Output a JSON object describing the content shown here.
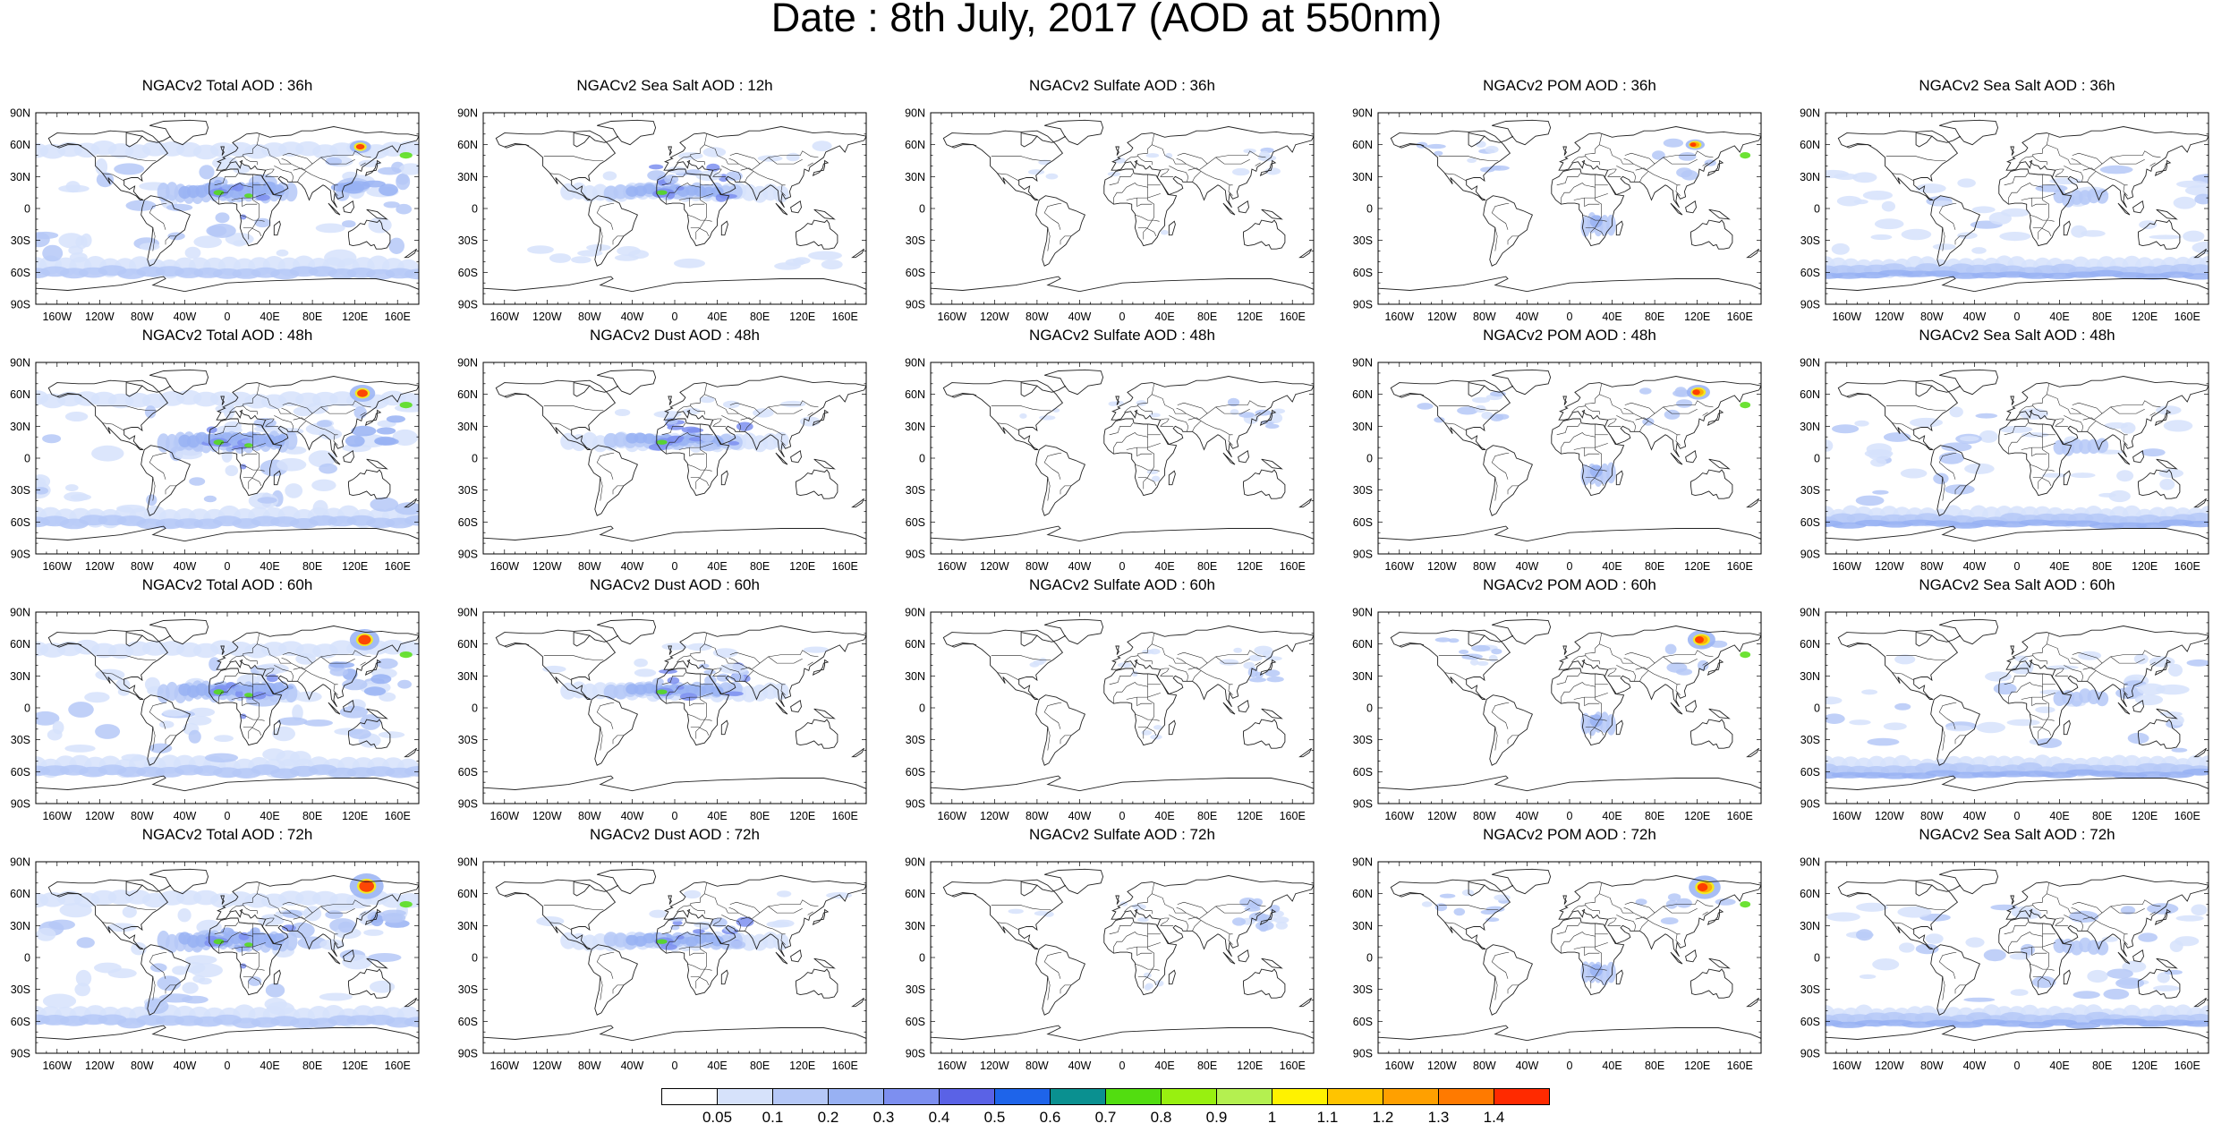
{
  "title": "Date : 8th July, 2017 (AOD at 550nm)",
  "lat_labels": [
    "90N",
    "60N",
    "30N",
    "0",
    "30S",
    "60S",
    "90S"
  ],
  "lon_labels": [
    "160W",
    "120W",
    "80W",
    "40W",
    "0",
    "40E",
    "80E",
    "120E",
    "160E"
  ],
  "panels": [
    [
      "NGACv2 Total AOD : 36h",
      "NGACv2 Sea Salt  AOD : 12h",
      "NGACv2 Sulfate AOD : 36h",
      "NGACv2 POM AOD : 36h",
      "NGACv2 Sea Salt AOD : 36h"
    ],
    [
      "NGACv2 Total AOD : 48h",
      "NGACv2 Dust AOD : 48h",
      "NGACv2 Sulfate AOD : 48h",
      "NGACv2 POM AOD : 48h",
      "NGACv2 Sea Salt AOD : 48h"
    ],
    [
      "NGACv2 Total AOD : 60h",
      "NGACv2 Dust AOD : 60h",
      "NGACv2 Sulfate AOD : 60h",
      "NGACv2 POM AOD : 60h",
      "NGACv2 Sea Salt AOD : 60h"
    ],
    [
      "NGACv2 Total AOD : 72h",
      "NGACv2 Dust AOD : 72h",
      "NGACv2 Sulfate AOD : 72h",
      "NGACv2 POM AOD : 72h",
      "NGACv2 Sea Salt  AOD : 72h"
    ]
  ],
  "colorbar": {
    "labels": [
      "0.05",
      "0.1",
      "0.2",
      "0.3",
      "0.4",
      "0.5",
      "0.6",
      "0.7",
      "0.8",
      "0.9",
      "1",
      "1.1",
      "1.2",
      "1.3",
      "1.4"
    ],
    "colors": [
      "#ffffff",
      "#d6e2fb",
      "#b5c8f7",
      "#98b1f3",
      "#7d8ff0",
      "#5a62e6",
      "#1e64ea",
      "#0a9090",
      "#52dd10",
      "#98f010",
      "#b4f050",
      "#fff200",
      "#ffc400",
      "#ffa000",
      "#ff7a00",
      "#ff2a00"
    ]
  },
  "map_colors": {
    "coast": "#222222",
    "low": "#d6e2fb",
    "mid": "#b5c8f7",
    "moderate": "#98b1f3",
    "high": "#7d8ff0",
    "dust": "#52dd10",
    "extreme": "#ff2a00",
    "orange": "#ffa000",
    "yellow": "#fff200"
  }
}
